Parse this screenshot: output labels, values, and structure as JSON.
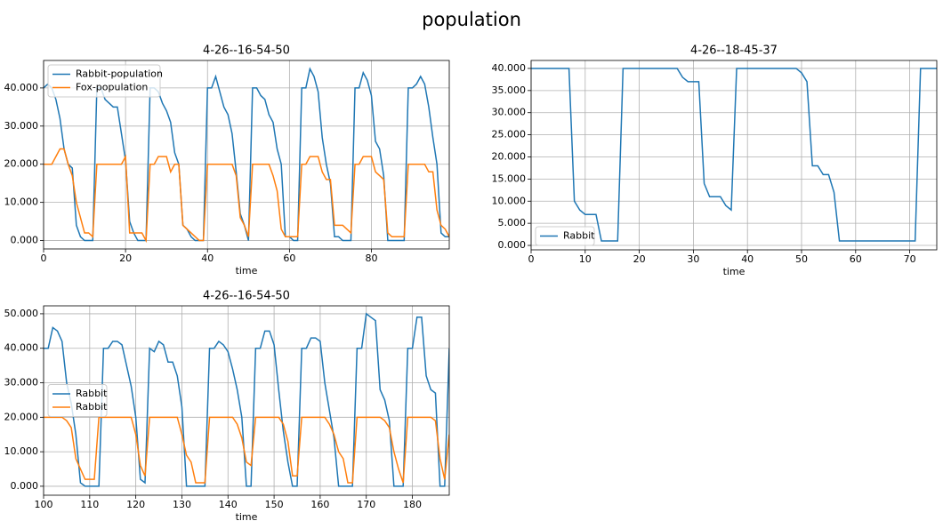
{
  "title": "population",
  "chart_data": [
    {
      "type": "line",
      "title": "4-26--16-54-50",
      "x_label": "time",
      "grid": true,
      "legend": "upper left",
      "x": [
        0,
        1,
        2,
        3,
        4,
        5,
        6,
        7,
        8,
        9,
        10,
        11,
        12,
        13,
        14,
        15,
        16,
        17,
        18,
        19,
        20,
        21,
        22,
        23,
        24,
        25,
        26,
        27,
        28,
        29,
        30,
        31,
        32,
        33,
        34,
        35,
        36,
        37,
        38,
        39,
        40,
        41,
        42,
        43,
        44,
        45,
        46,
        47,
        48,
        49,
        50,
        51,
        52,
        53,
        54,
        55,
        56,
        57,
        58,
        59,
        60,
        61,
        62,
        63,
        64,
        65,
        66,
        67,
        68,
        69,
        70,
        71,
        72,
        73,
        74,
        75,
        76,
        77,
        78,
        79,
        80,
        81,
        82,
        83,
        84,
        85,
        86,
        87,
        88,
        89,
        90,
        91,
        92,
        93,
        94,
        95,
        96,
        97,
        98,
        99
      ],
      "xlim": [
        0,
        99
      ],
      "xticks": [
        0,
        20,
        40,
        60,
        80
      ],
      "ylim": [
        -2.2,
        47.2
      ],
      "yticks": [
        {
          "value": 0,
          "label": "0.000"
        },
        {
          "value": 10,
          "label": "10.000"
        },
        {
          "value": 20,
          "label": "20.000"
        },
        {
          "value": 30,
          "label": "30.000"
        },
        {
          "value": 40,
          "label": "40.000"
        }
      ],
      "series": [
        {
          "name": "Rabbit-population",
          "color": "#1f77b4",
          "values": [
            40,
            41,
            40,
            37,
            32,
            24,
            20,
            19,
            4,
            1,
            0,
            0,
            0,
            40,
            40,
            37,
            36,
            35,
            35,
            28,
            21,
            5,
            2,
            0,
            0,
            0,
            40,
            40,
            39,
            36,
            34,
            31,
            23,
            20,
            4,
            3,
            1,
            0,
            0,
            0,
            40,
            40,
            43,
            39,
            35,
            33,
            28,
            18,
            7,
            4,
            0,
            40,
            40,
            38,
            37,
            33,
            31,
            24,
            20,
            1,
            1,
            0,
            0,
            40,
            40,
            45,
            43,
            39,
            27,
            20,
            15,
            1,
            1,
            0,
            0,
            0,
            40,
            40,
            44,
            42,
            38,
            26,
            24,
            17,
            0,
            0,
            0,
            0,
            0,
            40,
            40,
            41,
            43,
            41,
            35,
            27,
            20,
            2,
            1,
            1
          ]
        },
        {
          "name": "Fox-population",
          "color": "#ff7f0e",
          "values": [
            20,
            20,
            20,
            22,
            24,
            24,
            20,
            17,
            10,
            6,
            2,
            2,
            1,
            20,
            20,
            20,
            20,
            20,
            20,
            20,
            22,
            2,
            2,
            2,
            2,
            0,
            20,
            20,
            22,
            22,
            22,
            18,
            20,
            20,
            4,
            3,
            2,
            1,
            0,
            0,
            20,
            20,
            20,
            20,
            20,
            20,
            20,
            17,
            6,
            4,
            1,
            20,
            20,
            20,
            20,
            20,
            17,
            13,
            3,
            1,
            1,
            1,
            1,
            20,
            20,
            22,
            22,
            22,
            18,
            16,
            16,
            4,
            4,
            4,
            3,
            2,
            20,
            20,
            22,
            22,
            22,
            18,
            17,
            16,
            2,
            1,
            1,
            1,
            1,
            20,
            20,
            20,
            20,
            20,
            18,
            18,
            8,
            4,
            3,
            1
          ]
        }
      ]
    },
    {
      "type": "line",
      "title": "4-26--18-45-37",
      "x_label": "time",
      "grid": true,
      "legend": "lower left",
      "x": [
        0,
        1,
        2,
        3,
        4,
        5,
        6,
        7,
        8,
        9,
        10,
        11,
        12,
        13,
        14,
        15,
        16,
        17,
        18,
        19,
        20,
        21,
        22,
        23,
        24,
        25,
        26,
        27,
        28,
        29,
        30,
        31,
        32,
        33,
        34,
        35,
        36,
        37,
        38,
        39,
        40,
        41,
        42,
        43,
        44,
        45,
        46,
        47,
        48,
        49,
        50,
        51,
        52,
        53,
        54,
        55,
        56,
        57,
        58,
        59,
        60,
        61,
        62,
        63,
        64,
        65,
        66,
        67,
        68,
        69,
        70,
        71,
        72,
        73,
        74,
        75
      ],
      "xlim": [
        0,
        75
      ],
      "xticks": [
        0,
        10,
        20,
        30,
        40,
        50,
        60,
        70
      ],
      "ylim": [
        -1,
        41.8
      ],
      "yticks": [
        {
          "value": 0,
          "label": "0.000"
        },
        {
          "value": 5,
          "label": "5.000"
        },
        {
          "value": 10,
          "label": "10.000"
        },
        {
          "value": 15,
          "label": "15.000"
        },
        {
          "value": 20,
          "label": "20.000"
        },
        {
          "value": 25,
          "label": "25.000"
        },
        {
          "value": 30,
          "label": "30.000"
        },
        {
          "value": 35,
          "label": "35.000"
        },
        {
          "value": 40,
          "label": "40.000"
        }
      ],
      "series": [
        {
          "name": "Rabbit",
          "color": "#1f77b4",
          "values": [
            40,
            40,
            40,
            40,
            40,
            40,
            40,
            40,
            10,
            8,
            7,
            7,
            7,
            1,
            1,
            1,
            1,
            40,
            40,
            40,
            40,
            40,
            40,
            40,
            40,
            40,
            40,
            40,
            38,
            37,
            37,
            37,
            14,
            11,
            11,
            11,
            9,
            8,
            40,
            40,
            40,
            40,
            40,
            40,
            40,
            40,
            40,
            40,
            40,
            40,
            39,
            37,
            18,
            18,
            16,
            16,
            12,
            1,
            1,
            1,
            1,
            1,
            1,
            1,
            1,
            1,
            1,
            1,
            1,
            1,
            1,
            1,
            40,
            40,
            40,
            40
          ]
        }
      ]
    },
    {
      "type": "line",
      "title": "4-26--16-54-50",
      "x_label": "time",
      "grid": true,
      "legend": "center left",
      "x": [
        100,
        101,
        102,
        103,
        104,
        105,
        106,
        107,
        108,
        109,
        110,
        111,
        112,
        113,
        114,
        115,
        116,
        117,
        118,
        119,
        120,
        121,
        122,
        123,
        124,
        125,
        126,
        127,
        128,
        129,
        130,
        131,
        132,
        133,
        134,
        135,
        136,
        137,
        138,
        139,
        140,
        141,
        142,
        143,
        144,
        145,
        146,
        147,
        148,
        149,
        150,
        151,
        152,
        153,
        154,
        155,
        156,
        157,
        158,
        159,
        160,
        161,
        162,
        163,
        164,
        165,
        166,
        167,
        168,
        169,
        170,
        171,
        172,
        173,
        174,
        175,
        176,
        177,
        178,
        179,
        180,
        181,
        182,
        183,
        184,
        185,
        186,
        187,
        188
      ],
      "xlim": [
        100,
        188
      ],
      "xticks": [
        100,
        110,
        120,
        130,
        140,
        150,
        160,
        170,
        180
      ],
      "ylim": [
        -2.6,
        52.3
      ],
      "yticks": [
        {
          "value": 0,
          "label": "0.000"
        },
        {
          "value": 10,
          "label": "10.000"
        },
        {
          "value": 20,
          "label": "20.000"
        },
        {
          "value": 30,
          "label": "30.000"
        },
        {
          "value": 40,
          "label": "40.000"
        },
        {
          "value": 50,
          "label": "50.000"
        }
      ],
      "series": [
        {
          "name": "Rabbit",
          "color": "#1f77b4",
          "values": [
            40,
            40,
            46,
            45,
            42,
            30,
            24,
            15,
            1,
            0,
            0,
            0,
            0,
            40,
            40,
            42,
            42,
            41,
            35,
            29,
            20,
            2,
            1,
            40,
            39,
            42,
            41,
            36,
            36,
            32,
            23,
            0,
            0,
            0,
            0,
            0,
            40,
            40,
            42,
            41,
            39,
            34,
            28,
            20,
            0,
            0,
            40,
            40,
            45,
            45,
            41,
            28,
            16,
            7,
            0,
            0,
            40,
            40,
            43,
            43,
            42,
            30,
            22,
            14,
            0,
            0,
            0,
            0,
            40,
            40,
            50,
            49,
            48,
            28,
            25,
            19,
            0,
            0,
            0,
            40,
            40,
            49,
            49,
            32,
            28,
            27,
            0,
            0,
            40
          ]
        },
        {
          "name": "Rabbit",
          "color": "#ff7f0e",
          "values": [
            20,
            20,
            20,
            20,
            20,
            19,
            17,
            8,
            5,
            2,
            2,
            2,
            20,
            20,
            20,
            20,
            20,
            20,
            20,
            20,
            15,
            6,
            3,
            20,
            20,
            20,
            20,
            20,
            20,
            20,
            15,
            9,
            7,
            1,
            1,
            1,
            20,
            20,
            20,
            20,
            20,
            20,
            18,
            14,
            7,
            6,
            20,
            20,
            20,
            20,
            20,
            20,
            18,
            13,
            3,
            3,
            20,
            20,
            20,
            20,
            20,
            20,
            18,
            15,
            10,
            8,
            1,
            1,
            20,
            20,
            20,
            20,
            20,
            20,
            19,
            17,
            10,
            5,
            1,
            20,
            20,
            20,
            20,
            20,
            20,
            19,
            8,
            2,
            15
          ]
        }
      ]
    }
  ]
}
